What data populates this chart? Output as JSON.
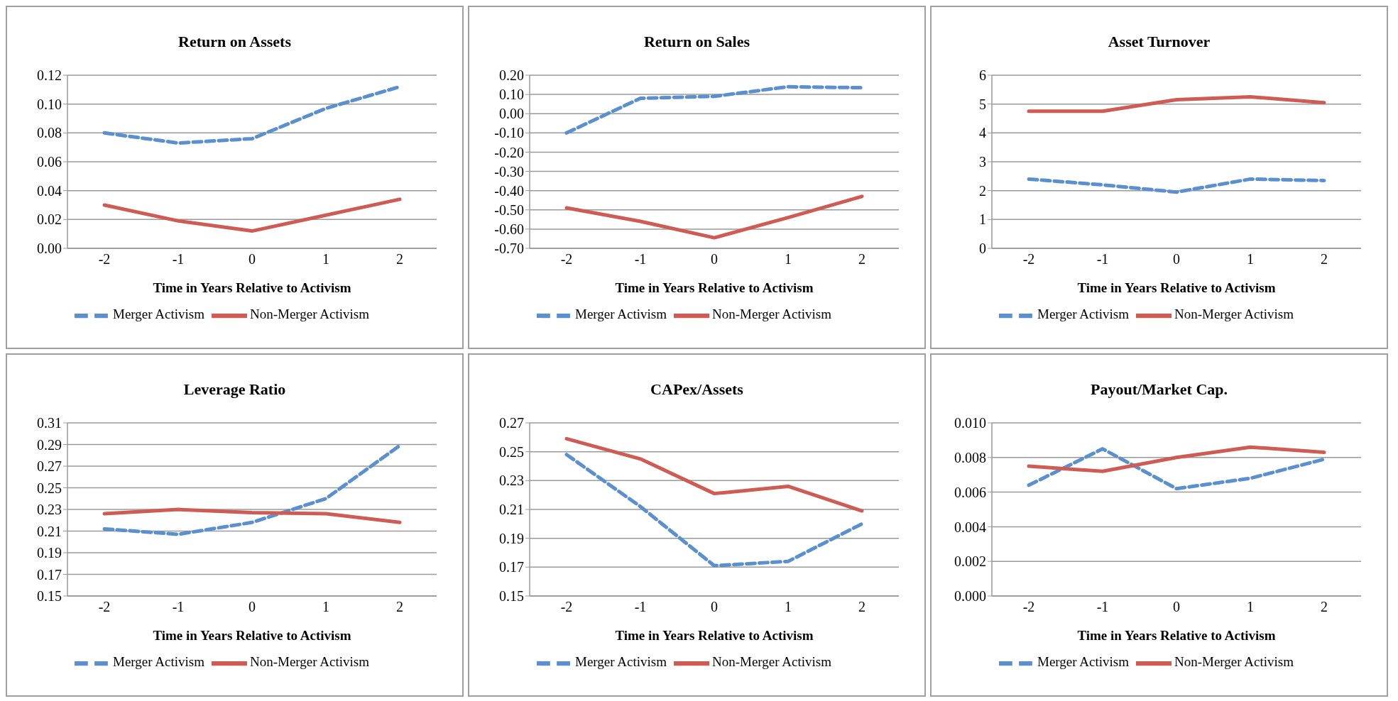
{
  "chart_data": [
    {
      "type": "line",
      "title": "Return on Assets",
      "xlabel": "Time in Years Relative to Activism",
      "categories": [
        "-2",
        "-1",
        "0",
        "1",
        "2"
      ],
      "ylim": [
        0,
        0.12
      ],
      "yticks": [
        {
          "value": 0,
          "label": "0.00"
        },
        {
          "value": 0.02,
          "label": "0.02"
        },
        {
          "value": 0.04,
          "label": "0.04"
        },
        {
          "value": 0.06,
          "label": "0.06"
        },
        {
          "value": 0.08,
          "label": "0.08"
        },
        {
          "value": 0.1,
          "label": "0.10"
        },
        {
          "value": 0.12,
          "label": "0.12"
        }
      ],
      "grid": "y",
      "legend": "bottom",
      "marker": "none",
      "series": [
        {
          "name": "Merger Activism",
          "color": "#5b90cc",
          "line_style": "dashed",
          "values": [
            0.08,
            0.073,
            0.076,
            0.097,
            0.112
          ]
        },
        {
          "name": "Non-Merger Activism",
          "color": "#cd5c55",
          "line_style": "solid",
          "values": [
            0.03,
            0.019,
            0.012,
            0.023,
            0.034
          ]
        }
      ]
    },
    {
      "type": "line",
      "title": "Return on Sales",
      "xlabel": "Time in Years Relative to Activism",
      "categories": [
        "-2",
        "-1",
        "0",
        "1",
        "2"
      ],
      "ylim": [
        -0.7,
        0.2
      ],
      "yticks": [
        {
          "value": -0.7,
          "label": "-0.70"
        },
        {
          "value": -0.6,
          "label": "-0.60"
        },
        {
          "value": -0.5,
          "label": "-0.50"
        },
        {
          "value": -0.4,
          "label": "-0.40"
        },
        {
          "value": -0.3,
          "label": "-0.30"
        },
        {
          "value": -0.2,
          "label": "-0.20"
        },
        {
          "value": -0.1,
          "label": "-0.10"
        },
        {
          "value": 0,
          "label": "0.00"
        },
        {
          "value": 0.1,
          "label": "0.10"
        },
        {
          "value": 0.2,
          "label": "0.20"
        }
      ],
      "grid": "y",
      "legend": "bottom",
      "marker": "none",
      "series": [
        {
          "name": "Merger Activism",
          "color": "#5b90cc",
          "line_style": "dashed",
          "values": [
            -0.1,
            0.08,
            0.09,
            0.14,
            0.135
          ]
        },
        {
          "name": "Non-Merger Activism",
          "color": "#cd5c55",
          "line_style": "solid",
          "values": [
            -0.49,
            -0.56,
            -0.645,
            -0.54,
            -0.43
          ]
        }
      ]
    },
    {
      "type": "line",
      "title": "Asset Turnover",
      "xlabel": "Time in Years Relative to Activism",
      "categories": [
        "-2",
        "-1",
        "0",
        "1",
        "2"
      ],
      "ylim": [
        0,
        6
      ],
      "yticks": [
        0,
        1,
        2,
        3,
        4,
        5,
        6
      ],
      "grid": "y",
      "legend": "bottom",
      "marker": "none",
      "series": [
        {
          "name": "Merger Activism",
          "color": "#5b90cc",
          "line_style": "dashed",
          "values": [
            2.4,
            2.2,
            1.95,
            2.4,
            2.35
          ]
        },
        {
          "name": "Non-Merger Activism",
          "color": "#cd5c55",
          "line_style": "solid",
          "values": [
            4.75,
            4.75,
            5.15,
            5.25,
            5.05
          ]
        }
      ]
    },
    {
      "type": "line",
      "title": "Leverage Ratio",
      "xlabel": "Time in Years Relative to Activism",
      "categories": [
        "-2",
        "-1",
        "0",
        "1",
        "2"
      ],
      "ylim": [
        0.15,
        0.31
      ],
      "yticks": [
        0.15,
        0.17,
        0.19,
        0.21,
        0.23,
        0.25,
        0.27,
        0.29,
        0.31
      ],
      "grid": "y",
      "legend": "bottom",
      "marker": "none",
      "series": [
        {
          "name": "Merger Activism",
          "color": "#5b90cc",
          "line_style": "dashed",
          "values": [
            0.212,
            0.207,
            0.218,
            0.24,
            0.289
          ]
        },
        {
          "name": "Non-Merger Activism",
          "color": "#cd5c55",
          "line_style": "solid",
          "values": [
            0.226,
            0.23,
            0.227,
            0.226,
            0.218
          ]
        }
      ]
    },
    {
      "type": "line",
      "title": "CAPex/Assets",
      "xlabel": "Time in Years Relative to Activism",
      "categories": [
        "-2",
        "-1",
        "0",
        "1",
        "2"
      ],
      "ylim": [
        0.15,
        0.27
      ],
      "yticks": [
        0.15,
        0.17,
        0.19,
        0.21,
        0.23,
        0.25,
        0.27
      ],
      "grid": "y",
      "legend": "bottom",
      "marker": "none",
      "series": [
        {
          "name": "Merger Activism",
          "color": "#5b90cc",
          "line_style": "dashed",
          "values": [
            0.248,
            0.212,
            0.171,
            0.174,
            0.2
          ]
        },
        {
          "name": "Non-Merger Activism",
          "color": "#cd5c55",
          "line_style": "solid",
          "values": [
            0.259,
            0.245,
            0.221,
            0.226,
            0.209
          ]
        }
      ]
    },
    {
      "type": "line",
      "title": "Payout/Market Cap.",
      "xlabel": "Time in Years Relative to Activism",
      "categories": [
        "-2",
        "-1",
        "0",
        "1",
        "2"
      ],
      "ylim": [
        0,
        0.01
      ],
      "yticks": [
        {
          "value": 0,
          "label": "0.000"
        },
        {
          "value": 0.002,
          "label": "0.002"
        },
        {
          "value": 0.004,
          "label": "0.004"
        },
        {
          "value": 0.006,
          "label": "0.006"
        },
        {
          "value": 0.008,
          "label": "0.008"
        },
        {
          "value": 0.01,
          "label": "0.010"
        }
      ],
      "grid": "y",
      "legend": "bottom",
      "marker": "none",
      "series": [
        {
          "name": "Merger Activism",
          "color": "#5b90cc",
          "line_style": "dashed",
          "values": [
            0.0064,
            0.0085,
            0.0062,
            0.0068,
            0.0079
          ]
        },
        {
          "name": "Non-Merger Activism",
          "color": "#cd5c55",
          "line_style": "solid",
          "values": [
            0.0075,
            0.0072,
            0.008,
            0.0086,
            0.0083
          ]
        }
      ]
    }
  ]
}
